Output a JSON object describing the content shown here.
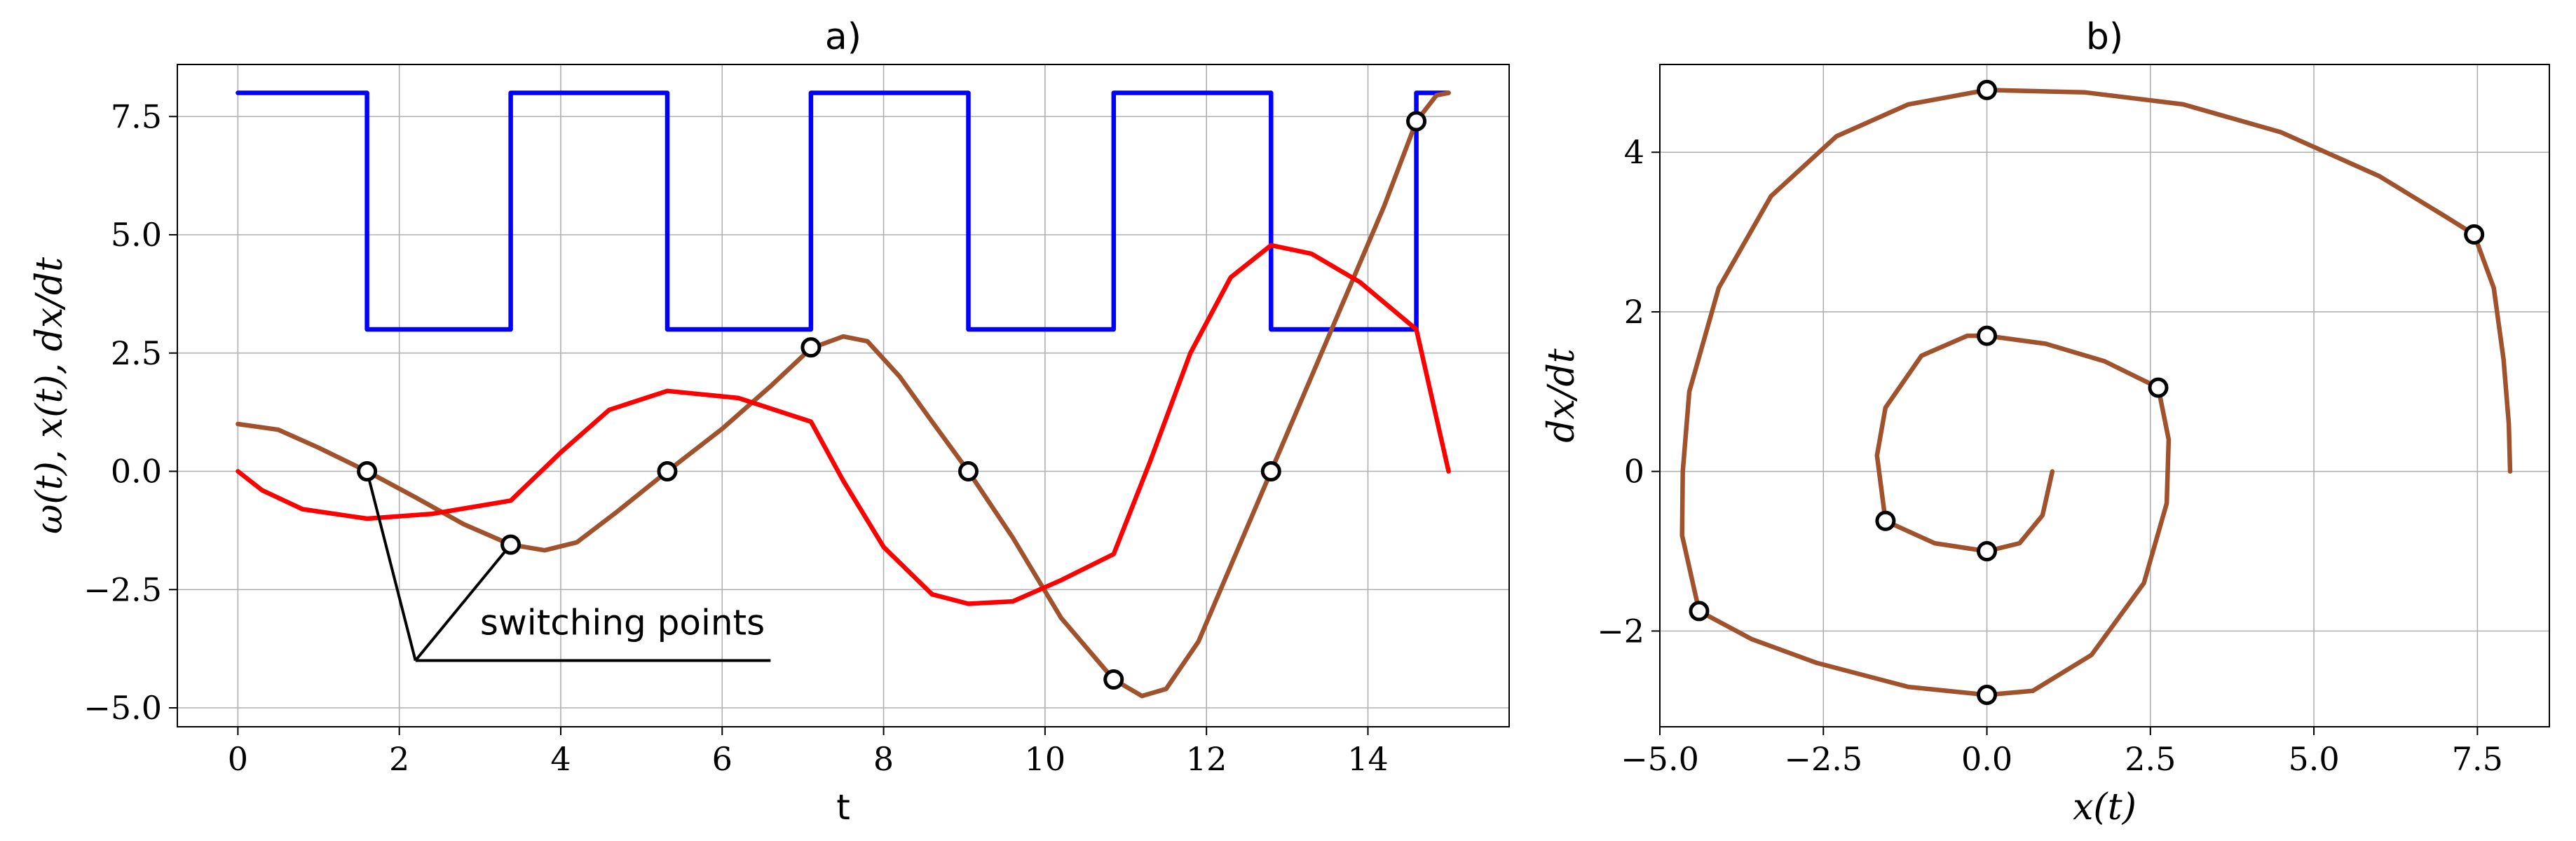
{
  "chart_data": [
    {
      "type": "line",
      "title": "a)",
      "xlabel": "t",
      "ylabel": "ω(t),  x(t),  dx/dt",
      "xlim": [
        -0.75,
        15.75
      ],
      "ylim": [
        -5.4,
        8.6
      ],
      "xticks": [
        0,
        2,
        4,
        6,
        8,
        10,
        12,
        14
      ],
      "xtick_labels": [
        "0",
        "2",
        "4",
        "6",
        "8",
        "10",
        "12",
        "14"
      ],
      "yticks": [
        -5.0,
        -2.5,
        0.0,
        2.5,
        5.0,
        7.5
      ],
      "ytick_labels": [
        "−5.0",
        "−2.5",
        "0.0",
        "2.5",
        "5.0",
        "7.5"
      ],
      "grid": true,
      "series": [
        {
          "key": "omega",
          "color": "#0000ff",
          "step": true,
          "points": [
            [
              0,
              8
            ],
            [
              1.6,
              8
            ],
            [
              1.6,
              3
            ],
            [
              3.38,
              3
            ],
            [
              3.38,
              8
            ],
            [
              5.32,
              8
            ],
            [
              5.32,
              3
            ],
            [
              7.1,
              3
            ],
            [
              7.1,
              8
            ],
            [
              9.05,
              8
            ],
            [
              9.05,
              3
            ],
            [
              10.85,
              3
            ],
            [
              10.85,
              8
            ],
            [
              12.8,
              8
            ],
            [
              12.8,
              3
            ],
            [
              14.6,
              3
            ],
            [
              14.6,
              8
            ],
            [
              15,
              8
            ]
          ]
        },
        {
          "key": "x",
          "color": "#a0522d",
          "points": [
            [
              0,
              1.0
            ],
            [
              0.5,
              0.88
            ],
            [
              1.0,
              0.5
            ],
            [
              1.6,
              0.0
            ],
            [
              2.2,
              -0.55
            ],
            [
              2.8,
              -1.12
            ],
            [
              3.38,
              -1.55
            ],
            [
              3.8,
              -1.67
            ],
            [
              4.2,
              -1.5
            ],
            [
              4.7,
              -0.85
            ],
            [
              5.32,
              0.0
            ],
            [
              6.0,
              0.9
            ],
            [
              6.6,
              1.8
            ],
            [
              7.1,
              2.6
            ],
            [
              7.5,
              2.85
            ],
            [
              7.8,
              2.75
            ],
            [
              8.2,
              2.0
            ],
            [
              8.6,
              1.05
            ],
            [
              9.05,
              0.0
            ],
            [
              9.6,
              -1.4
            ],
            [
              10.2,
              -3.1
            ],
            [
              10.85,
              -4.4
            ],
            [
              11.2,
              -4.75
            ],
            [
              11.5,
              -4.6
            ],
            [
              11.9,
              -3.6
            ],
            [
              12.35,
              -1.8
            ],
            [
              12.8,
              0.0
            ],
            [
              13.3,
              2.0
            ],
            [
              13.8,
              4.0
            ],
            [
              14.2,
              5.6
            ],
            [
              14.6,
              7.4
            ],
            [
              14.85,
              7.95
            ],
            [
              15.0,
              8.0
            ]
          ]
        },
        {
          "key": "dxdt",
          "color": "#ff0000",
          "points": [
            [
              0,
              0.0
            ],
            [
              0.3,
              -0.4
            ],
            [
              0.8,
              -0.8
            ],
            [
              1.6,
              -1.0
            ],
            [
              2.4,
              -0.9
            ],
            [
              3.38,
              -0.62
            ],
            [
              4.0,
              0.4
            ],
            [
              4.6,
              1.3
            ],
            [
              5.32,
              1.7
            ],
            [
              6.2,
              1.55
            ],
            [
              7.1,
              1.05
            ],
            [
              7.5,
              -0.2
            ],
            [
              8.0,
              -1.6
            ],
            [
              8.6,
              -2.6
            ],
            [
              9.05,
              -2.8
            ],
            [
              9.6,
              -2.75
            ],
            [
              10.2,
              -2.3
            ],
            [
              10.85,
              -1.75
            ],
            [
              11.3,
              0.2
            ],
            [
              11.8,
              2.5
            ],
            [
              12.3,
              4.1
            ],
            [
              12.8,
              4.78
            ],
            [
              13.3,
              4.6
            ],
            [
              13.9,
              4.0
            ],
            [
              14.6,
              3.0
            ],
            [
              14.8,
              1.5
            ],
            [
              15.0,
              0.0
            ]
          ]
        }
      ],
      "markers": [
        [
          1.6,
          0.0
        ],
        [
          3.38,
          -1.55
        ],
        [
          5.32,
          0.0
        ],
        [
          7.1,
          2.62
        ],
        [
          9.05,
          0.0
        ],
        [
          10.85,
          -4.4
        ],
        [
          12.8,
          0.0
        ],
        [
          14.6,
          7.4
        ]
      ],
      "annotation": {
        "text": "switching points",
        "targets": [
          [
            1.6,
            0.0
          ],
          [
            3.38,
            -1.55
          ]
        ],
        "vertex": [
          2.2,
          -4.0
        ],
        "line_end": [
          6.6,
          -4.0
        ],
        "text_anchor": [
          3.0,
          -3.45
        ]
      }
    },
    {
      "type": "line",
      "title": "b)",
      "xlabel": "x(t)",
      "ylabel": "dx/dt",
      "xlim": [
        -5.0,
        8.6
      ],
      "ylim": [
        -3.2,
        5.1
      ],
      "xticks": [
        -5.0,
        -2.5,
        0.0,
        2.5,
        5.0,
        7.5
      ],
      "xtick_labels": [
        "−5.0",
        "−2.5",
        "0.0",
        "2.5",
        "5.0",
        "7.5"
      ],
      "yticks": [
        -2,
        0,
        2,
        4
      ],
      "ytick_labels": [
        "−2",
        "0",
        "2",
        "4"
      ],
      "grid": true,
      "series": [
        {
          "key": "phase",
          "color": "#a0522d",
          "points": [
            [
              1.0,
              0.0
            ],
            [
              0.85,
              -0.55
            ],
            [
              0.5,
              -0.9
            ],
            [
              0.0,
              -1.0
            ],
            [
              -0.8,
              -0.9
            ],
            [
              -1.55,
              -0.62
            ],
            [
              -1.68,
              0.2
            ],
            [
              -1.55,
              0.8
            ],
            [
              -1.0,
              1.45
            ],
            [
              -0.3,
              1.7
            ],
            [
              0.0,
              1.7
            ],
            [
              0.9,
              1.6
            ],
            [
              1.8,
              1.38
            ],
            [
              2.62,
              1.05
            ],
            [
              2.78,
              0.4
            ],
            [
              2.75,
              -0.4
            ],
            [
              2.4,
              -1.4
            ],
            [
              1.6,
              -2.3
            ],
            [
              0.7,
              -2.75
            ],
            [
              0.0,
              -2.8
            ],
            [
              -1.2,
              -2.7
            ],
            [
              -2.6,
              -2.4
            ],
            [
              -3.6,
              -2.1
            ],
            [
              -4.4,
              -1.75
            ],
            [
              -4.66,
              -0.8
            ],
            [
              -4.65,
              0.0
            ],
            [
              -4.55,
              1.0
            ],
            [
              -4.1,
              2.3
            ],
            [
              -3.3,
              3.45
            ],
            [
              -2.3,
              4.2
            ],
            [
              -1.2,
              4.6
            ],
            [
              0.0,
              4.78
            ],
            [
              1.5,
              4.75
            ],
            [
              3.0,
              4.6
            ],
            [
              4.5,
              4.25
            ],
            [
              6.0,
              3.7
            ],
            [
              7.0,
              3.2
            ],
            [
              7.45,
              2.97
            ],
            [
              7.75,
              2.3
            ],
            [
              7.9,
              1.4
            ],
            [
              7.98,
              0.6
            ],
            [
              8.0,
              0.0
            ]
          ]
        }
      ],
      "markers": [
        [
          0.0,
          -1.0
        ],
        [
          -1.55,
          -0.62
        ],
        [
          0.0,
          1.7
        ],
        [
          2.62,
          1.05
        ],
        [
          0.0,
          -2.8
        ],
        [
          -4.4,
          -1.75
        ],
        [
          0.0,
          4.78
        ],
        [
          7.45,
          2.97
        ]
      ]
    }
  ]
}
